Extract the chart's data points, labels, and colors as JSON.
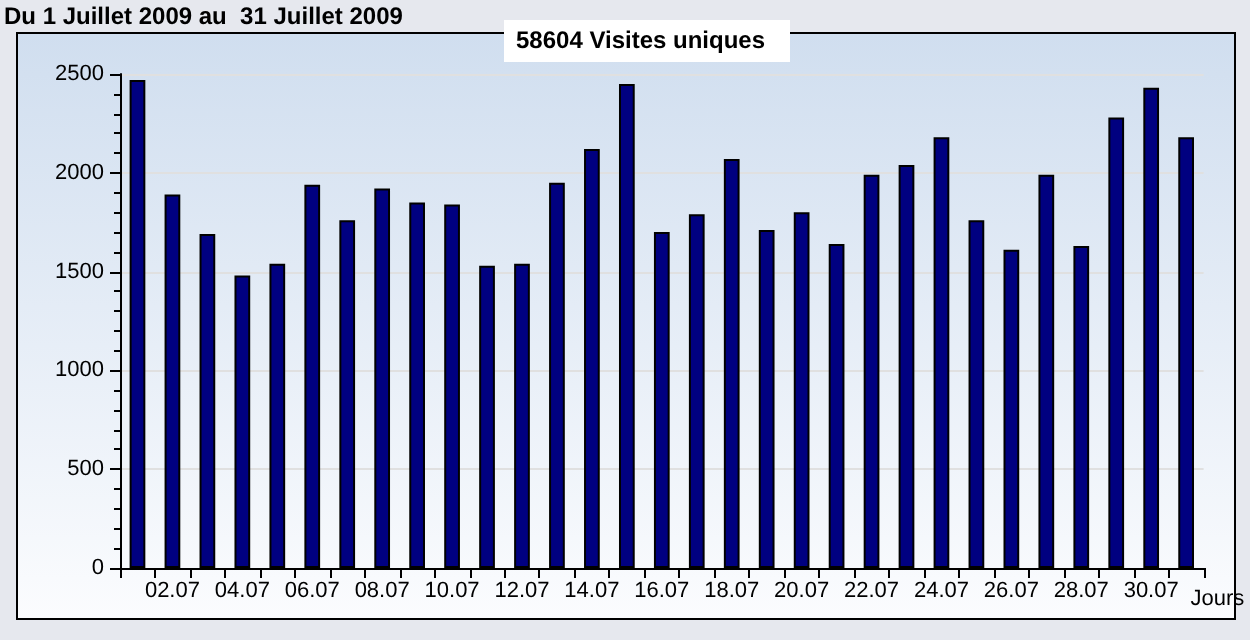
{
  "chart_data": {
    "type": "bar",
    "title": "Du 1 Juillet 2009 au  31 Juillet 2009",
    "subtitle": "58604 Visites uniques",
    "xlabel": "Jours",
    "categories": [
      null,
      "02.07",
      null,
      "04.07",
      null,
      "06.07",
      null,
      "08.07",
      null,
      "10.07",
      null,
      "12.07",
      null,
      "14.07",
      null,
      "16.07",
      null,
      "18.07",
      null,
      "20.07",
      null,
      "22.07",
      null,
      "24.07",
      null,
      "26.07",
      null,
      "28.07",
      null,
      "30.07",
      null
    ],
    "values": [
      2470,
      1890,
      1690,
      1480,
      1540,
      1940,
      1760,
      1920,
      1850,
      1840,
      1530,
      1540,
      1950,
      2120,
      2450,
      1700,
      1790,
      2070,
      1710,
      1800,
      1640,
      1990,
      2040,
      2180,
      1760,
      1610,
      1990,
      1630,
      2280,
      2430,
      2180
    ],
    "color": "#000080",
    "ylim": [
      0,
      2500
    ],
    "yticks": [
      0,
      500,
      1000,
      1500,
      2000,
      2500
    ],
    "grid": "y"
  }
}
